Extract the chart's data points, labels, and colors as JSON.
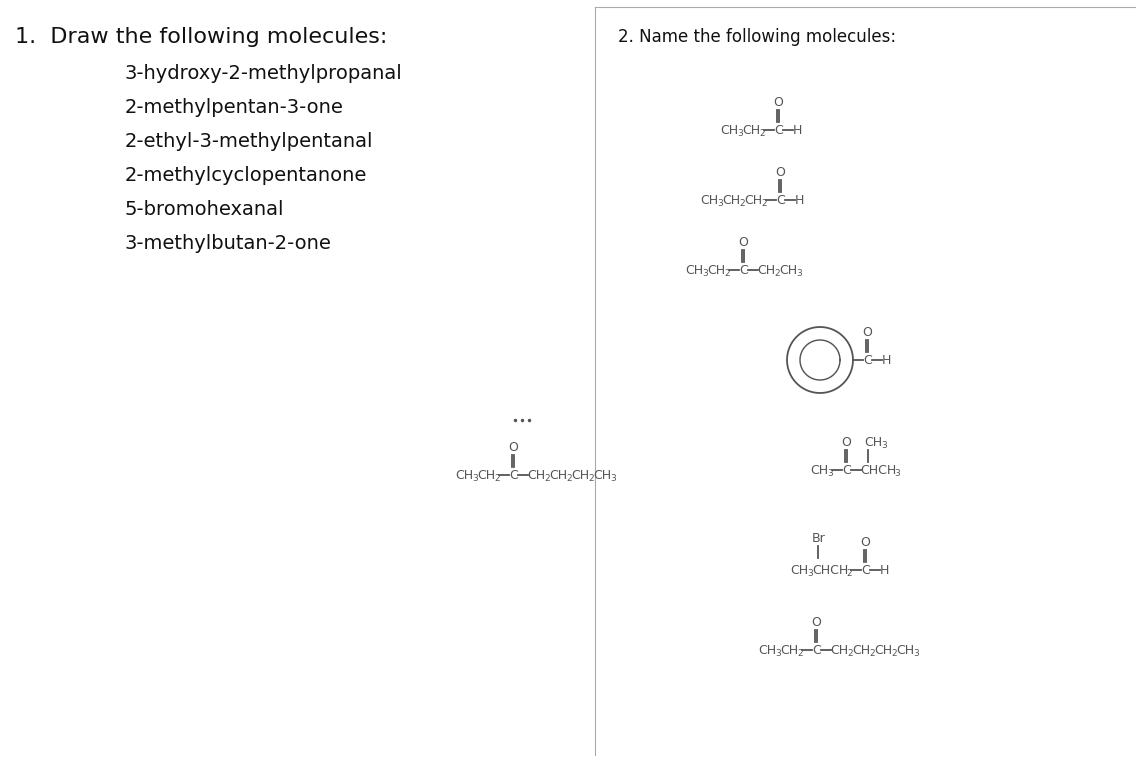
{
  "bg_color": "#ffffff",
  "title1": "1.  Draw the following molecules:",
  "title2": "2. Name the following molecules:",
  "molecules_left": [
    "3-hydroxy-2-methylpropanal",
    "2-methylpentan-3-one",
    "2-ethyl-3-methylpentanal",
    "2-methylcyclopentanone",
    "5-bromohexanal",
    "3-methylbutan-2-one"
  ],
  "gc": "#555555",
  "lw": 1.3
}
